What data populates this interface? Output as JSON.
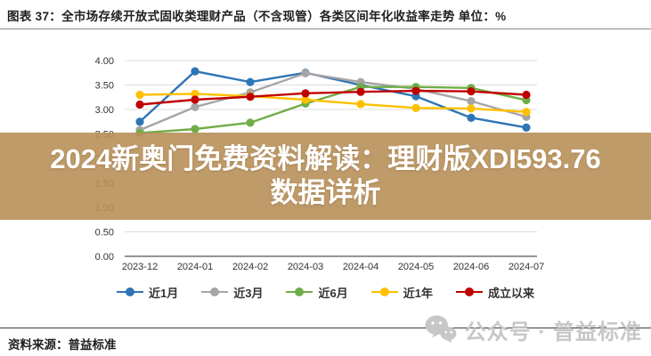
{
  "header": {
    "title": "图表 37：全市场存续开放式固收类理财产品（不含现管）各类区间年化收益率走势  单位：%"
  },
  "chart_data": {
    "type": "line",
    "title": "全市场存续开放式固收类理财产品（不含现管）各类区间年化收益率走势",
    "unit": "%",
    "categories": [
      "2023-12",
      "2024-01",
      "2024-02",
      "2024-03",
      "2024-04",
      "2024-05",
      "2024-06",
      "2024-07"
    ],
    "series": [
      {
        "name": "近1月",
        "color": "#2e75b6",
        "values": [
          2.75,
          3.78,
          3.56,
          3.75,
          3.5,
          3.27,
          2.83,
          2.63
        ]
      },
      {
        "name": "近3月",
        "color": "#a5a5a5",
        "values": [
          2.58,
          3.05,
          3.35,
          3.74,
          3.56,
          3.42,
          3.17,
          2.85
        ]
      },
      {
        "name": "近6月",
        "color": "#70ad47",
        "values": [
          2.52,
          2.6,
          2.73,
          3.12,
          3.46,
          3.46,
          3.44,
          3.19
        ]
      },
      {
        "name": "近1年",
        "color": "#ffc000",
        "values": [
          3.3,
          3.32,
          3.27,
          3.2,
          3.11,
          3.03,
          3.02,
          2.95
        ]
      },
      {
        "name": "成立以来",
        "color": "#c00000",
        "values": [
          3.1,
          3.2,
          3.26,
          3.33,
          3.36,
          3.38,
          3.37,
          3.3
        ]
      }
    ],
    "ylim": [
      0,
      4
    ],
    "ytick_step": 0.5,
    "ytick_format_decimals": 2,
    "grid": true,
    "legend_position": "bottom"
  },
  "banner": {
    "line1": "2024新奥门免费资料解读：理财版XDI593.76",
    "line2": "数据详析",
    "bg_color": "#b8905a",
    "bg_opacity": 0.9,
    "text_color": "#ffffff"
  },
  "footer": {
    "source": "资料来源：普益标准",
    "watermark": "公众号 · 普益标准",
    "watermark_color": "#c7c7c7"
  }
}
